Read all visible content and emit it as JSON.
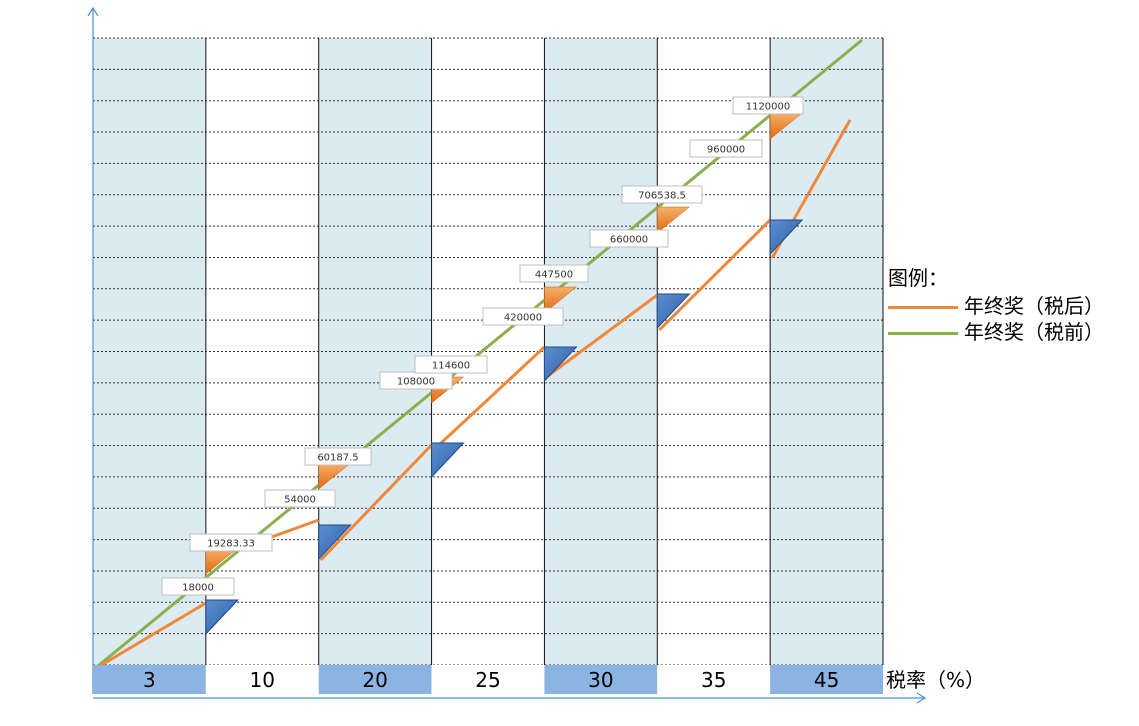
{
  "chart_data": {
    "type": "line",
    "x_axis": {
      "label": "税率（%）",
      "categories": [
        "3",
        "10",
        "20",
        "25",
        "30",
        "35",
        "45"
      ]
    },
    "legend": {
      "title": "图例：",
      "placement": "right",
      "entries": [
        "年终奖（税后）",
        "年终奖（税前）"
      ]
    },
    "series": [
      {
        "name": "年终奖（税后）",
        "color": "#f0883a"
      },
      {
        "name": "年终奖（税前）",
        "color": "#8ab04e"
      }
    ],
    "thresholds": [
      {
        "category": "3",
        "pre_tax": "18000",
        "after_tax": "19283.33"
      },
      {
        "category": "10",
        "pre_tax": "54000",
        "after_tax": "60187.5"
      },
      {
        "category": "20",
        "pre_tax": "108000",
        "after_tax": "114600"
      },
      {
        "category": "25",
        "pre_tax": "420000",
        "after_tax": "447500"
      },
      {
        "category": "30",
        "pre_tax": "660000",
        "after_tax": "706538.5"
      },
      {
        "category": "35",
        "pre_tax": "960000",
        "after_tax": "1120000"
      }
    ],
    "grid": true,
    "colors": {
      "band_shaded": "#dcebf2",
      "band_white": "#ffffff",
      "category_bar": "#8cb4e2",
      "orange_marker": "#e87b20",
      "blue_marker": "#3b6eb5",
      "axis": "#4a90d9"
    }
  }
}
